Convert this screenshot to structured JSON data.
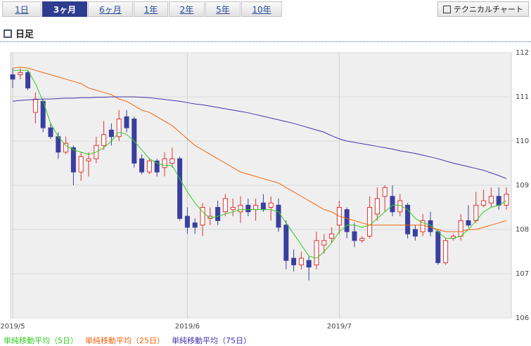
{
  "tabs": [
    "1日",
    "3ヶ月",
    "6ヶ月",
    "1年",
    "2年",
    "5年",
    "10年"
  ],
  "selected_tab_index": 1,
  "button": "テクニカルチャート",
  "heading": "日足",
  "chart_data": {
    "type": "candlestick",
    "categories": [
      "2019/5",
      null,
      null,
      null,
      null,
      null,
      null,
      null,
      null,
      null,
      null,
      null,
      null,
      null,
      null,
      null,
      null,
      null,
      null,
      null,
      null,
      null,
      null,
      "2019/6",
      null,
      null,
      null,
      null,
      null,
      null,
      null,
      null,
      null,
      null,
      null,
      null,
      null,
      null,
      null,
      null,
      null,
      null,
      null,
      "2019/7",
      null,
      null,
      null,
      null,
      null,
      null,
      null,
      null,
      null,
      null,
      null,
      null,
      null,
      null,
      null,
      null,
      null,
      null,
      null,
      null,
      null,
      null
    ],
    "open": [
      111.5,
      111.5,
      111.55,
      110.65,
      110.9,
      110.3,
      110.1,
      109.75,
      109.85,
      109.3,
      109.55,
      109.6,
      109.9,
      110.25,
      110.1,
      110.55,
      110.5,
      109.6,
      109.3,
      109.55,
      109.4,
      109.5,
      109.6,
      108.3,
      108.15,
      108.1,
      108.25,
      108.5,
      108.4,
      108.45,
      108.4,
      108.55,
      108.45,
      108.6,
      108.5,
      108.55,
      108.1,
      107.35,
      107.2,
      107.3,
      107.2,
      107.65,
      107.8,
      108.1,
      108.45,
      107.95,
      107.75,
      107.85,
      108.35,
      108.75,
      108.75,
      108.4,
      108.55,
      108.0,
      107.95,
      108.2,
      107.95,
      107.25,
      107.8,
      107.85,
      108.2,
      108.2,
      108.55,
      108.6,
      108.75,
      108.55
    ],
    "high": [
      111.65,
      111.65,
      111.6,
      111.1,
      110.95,
      110.4,
      110.2,
      110.1,
      109.9,
      109.75,
      109.75,
      110.1,
      110.45,
      110.4,
      110.7,
      110.7,
      110.55,
      109.7,
      109.6,
      109.6,
      109.75,
      109.85,
      109.65,
      108.5,
      108.25,
      108.6,
      108.5,
      108.65,
      108.8,
      108.7,
      108.75,
      108.7,
      108.7,
      108.8,
      108.75,
      108.7,
      108.2,
      107.55,
      107.5,
      107.4,
      107.95,
      107.9,
      108.05,
      108.65,
      108.5,
      108.15,
      107.85,
      108.75,
      108.95,
      109.0,
      109.0,
      108.8,
      108.6,
      108.1,
      108.35,
      108.4,
      108.0,
      107.8,
      107.9,
      108.35,
      108.55,
      108.85,
      108.9,
      108.95,
      108.95,
      108.95
    ],
    "low": [
      111.2,
      111.4,
      111.15,
      110.4,
      110.2,
      110.05,
      109.6,
      109.7,
      109.0,
      109.1,
      109.2,
      109.5,
      109.8,
      109.9,
      110.0,
      110.2,
      109.4,
      109.25,
      109.25,
      109.2,
      109.2,
      109.4,
      108.2,
      107.9,
      107.9,
      107.85,
      108.1,
      108.1,
      108.3,
      108.3,
      108.15,
      108.3,
      108.2,
      108.4,
      108.2,
      107.95,
      107.1,
      107.05,
      107.1,
      106.85,
      107.1,
      107.45,
      107.7,
      107.9,
      107.8,
      107.6,
      107.7,
      107.8,
      108.2,
      108.4,
      108.3,
      108.3,
      107.8,
      107.75,
      107.85,
      107.85,
      107.2,
      107.2,
      107.75,
      107.75,
      108.05,
      108.15,
      108.5,
      108.5,
      108.45,
      108.45
    ],
    "close": [
      111.4,
      111.55,
      111.2,
      110.95,
      110.3,
      110.1,
      109.75,
      109.95,
      109.3,
      109.65,
      109.6,
      109.9,
      110.15,
      110.1,
      110.5,
      110.3,
      109.5,
      109.3,
      109.55,
      109.3,
      109.6,
      109.6,
      108.25,
      108.05,
      108.05,
      108.5,
      108.3,
      108.2,
      108.7,
      108.5,
      108.55,
      108.4,
      108.55,
      108.45,
      108.6,
      108.05,
      107.3,
      107.2,
      107.35,
      107.15,
      107.75,
      107.75,
      107.9,
      108.5,
      107.95,
      107.75,
      107.8,
      108.5,
      108.7,
      108.95,
      108.4,
      108.65,
      107.9,
      107.85,
      108.2,
      107.95,
      107.25,
      107.75,
      107.85,
      108.2,
      108.1,
      108.55,
      108.65,
      108.75,
      108.55,
      108.8
    ],
    "up_color": "#dd3333",
    "down_color": "#3a3f9e",
    "series": [
      {
        "name": "単純移動平均（5日）",
        "color": "#33cc22",
        "values": [
          111.6,
          111.6,
          111.6,
          111.3,
          110.9,
          110.4,
          110.1,
          109.9,
          109.8,
          109.75,
          109.7,
          109.75,
          109.85,
          110.0,
          110.2,
          110.15,
          110.0,
          109.8,
          109.6,
          109.5,
          109.45,
          109.45,
          109.15,
          108.85,
          108.6,
          108.4,
          108.25,
          108.3,
          108.35,
          108.4,
          108.45,
          108.45,
          108.45,
          108.45,
          108.45,
          108.4,
          108.15,
          107.9,
          107.65,
          107.4,
          107.35,
          107.5,
          107.7,
          107.95,
          108.1,
          108.1,
          108.05,
          108.1,
          108.25,
          108.4,
          108.55,
          108.55,
          108.45,
          108.25,
          108.15,
          108.1,
          107.95,
          107.8,
          107.8,
          107.85,
          108.0,
          108.2,
          108.4,
          108.5,
          108.55,
          108.65
        ]
      },
      {
        "name": "単純移動平均（25日）",
        "color": "#ee6611",
        "values": [
          111.65,
          111.67,
          111.65,
          111.6,
          111.55,
          111.5,
          111.45,
          111.4,
          111.35,
          111.3,
          111.2,
          111.15,
          111.1,
          111.05,
          110.95,
          110.9,
          110.8,
          110.7,
          110.65,
          110.55,
          110.45,
          110.35,
          110.2,
          110.05,
          109.9,
          109.8,
          109.7,
          109.6,
          109.5,
          109.4,
          109.3,
          109.25,
          109.2,
          109.15,
          109.1,
          109.05,
          108.95,
          108.85,
          108.75,
          108.65,
          108.55,
          108.45,
          108.4,
          108.3,
          108.25,
          108.2,
          108.15,
          108.1,
          108.1,
          108.1,
          108.1,
          108.1,
          108.1,
          108.1,
          108.1,
          108.05,
          108.0,
          107.95,
          107.95,
          107.95,
          108.0,
          108.0,
          108.05,
          108.1,
          108.15,
          108.2
        ]
      },
      {
        "name": "単純移動平均（75日）",
        "color": "#4433aa",
        "values": [
          110.9,
          110.92,
          110.93,
          110.94,
          110.95,
          110.95,
          110.96,
          110.97,
          110.97,
          110.98,
          110.98,
          110.99,
          110.99,
          111.0,
          111.0,
          111.0,
          111.0,
          110.99,
          110.98,
          110.96,
          110.94,
          110.92,
          110.9,
          110.87,
          110.84,
          110.82,
          110.79,
          110.76,
          110.73,
          110.7,
          110.67,
          110.64,
          110.6,
          110.56,
          110.52,
          110.48,
          110.44,
          110.4,
          110.35,
          110.3,
          110.25,
          110.2,
          110.12,
          110.05,
          110.0,
          109.97,
          109.94,
          109.91,
          109.88,
          109.85,
          109.82,
          109.78,
          109.75,
          109.72,
          109.68,
          109.64,
          109.6,
          109.55,
          109.5,
          109.46,
          109.42,
          109.38,
          109.34,
          109.28,
          109.22,
          109.15
        ]
      }
    ],
    "ylim": [
      106,
      112
    ],
    "yticks": [
      106,
      107,
      108,
      109,
      110,
      111,
      112
    ],
    "grid": true
  }
}
